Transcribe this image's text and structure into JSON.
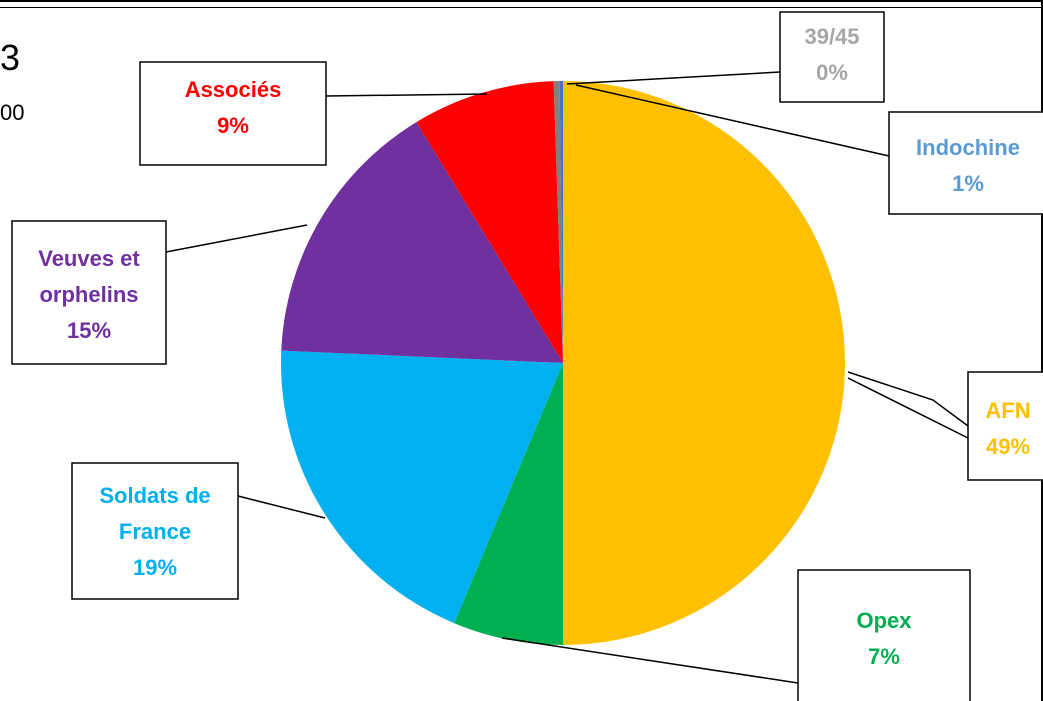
{
  "partial_text": {
    "title_fragment": "3",
    "subtitle_fragment": "00"
  },
  "chart_data": {
    "type": "pie",
    "categories": [
      "AFN",
      "Opex",
      "Soldats de France",
      "Veuves et orphelins",
      "Associés",
      "39/45",
      "Indochine"
    ],
    "values": [
      49,
      7,
      19,
      15,
      9,
      0,
      1
    ],
    "labels": [
      {
        "lines": [
          "AFN",
          "49%"
        ],
        "color": "#FFC000"
      },
      {
        "lines": [
          "Opex",
          "7%"
        ],
        "color": "#00B050"
      },
      {
        "lines": [
          "Soldats de",
          "France",
          "19%"
        ],
        "color": "#00B0F0"
      },
      {
        "lines": [
          "Veuves et",
          "orphelins",
          "15%"
        ],
        "color": "#7030A0"
      },
      {
        "lines": [
          "Associés",
          "9%"
        ],
        "color": "#FF0000"
      },
      {
        "lines": [
          "39/45",
          "0%"
        ],
        "color": "#A6A6A6"
      },
      {
        "lines": [
          "Indochine",
          "1%"
        ],
        "color": "#5B9BD5"
      }
    ],
    "slice_colors": [
      "#FFC000",
      "#00B050",
      "#00B0F0",
      "#7030A0",
      "#FF0000",
      "#808080",
      "#4472C4"
    ],
    "legend": "none",
    "data_labels": "callouts"
  }
}
